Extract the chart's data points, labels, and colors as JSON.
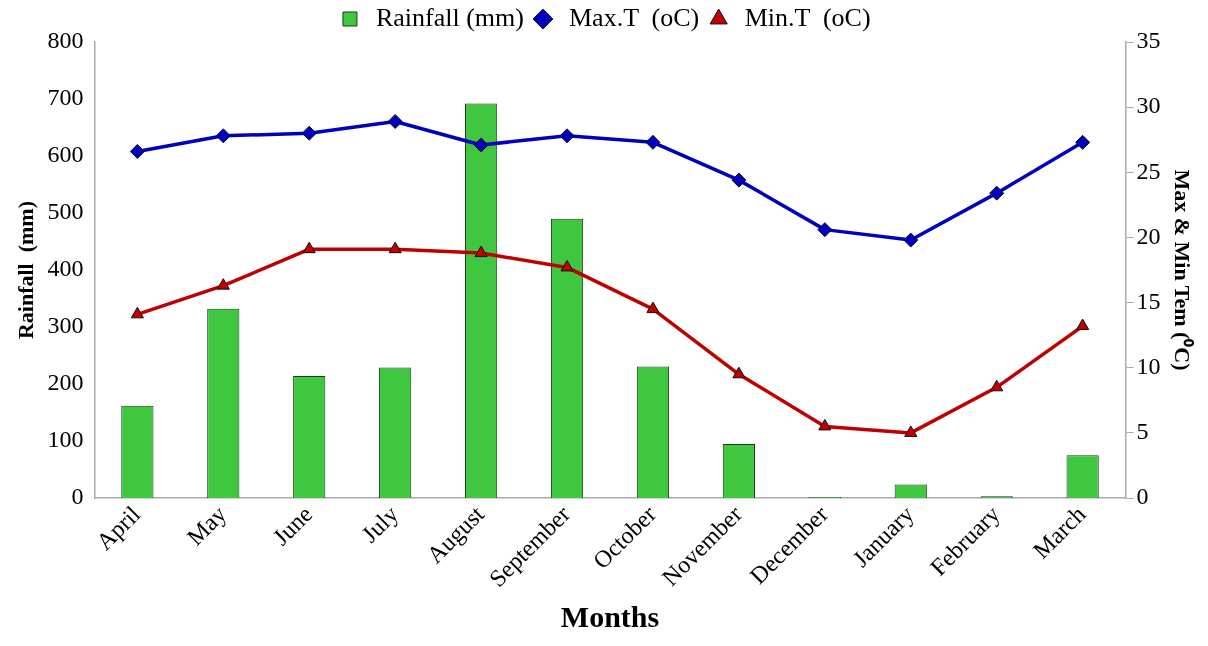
{
  "chart_data": {
    "type": "bar",
    "xlabel": "Months",
    "ylabel": "Rainfall  (mm)",
    "y2label": "Max & Min Tem (⁰C)",
    "categories": [
      "April",
      "May",
      "June",
      "July",
      "August",
      "September",
      "October",
      "November",
      "December",
      "January",
      "February",
      "March"
    ],
    "series": [
      {
        "name": "Rainfall (mm)",
        "color": "#3fc73f",
        "values": [
          162,
          332,
          214,
          229,
          692,
          490,
          231,
          95,
          2,
          24,
          3,
          75
        ]
      },
      {
        "name": "Max.T  (oC)",
        "type": "line",
        "axis": "y2",
        "marker": "diamond",
        "color": "#0000c0",
        "values": [
          26.6,
          27.8,
          28.0,
          28.9,
          27.1,
          27.8,
          27.3,
          24.4,
          20.6,
          19.8,
          23.4,
          27.3
        ]
      },
      {
        "name": "Min.T  (oC)",
        "type": "line",
        "axis": "y2",
        "marker": "triangle",
        "color": "#c00000",
        "values": [
          14.1,
          16.3,
          19.1,
          19.1,
          18.8,
          17.7,
          14.5,
          9.5,
          5.5,
          5.0,
          8.5,
          13.2
        ]
      }
    ],
    "ylim": [
      0,
      800
    ],
    "yticks": [
      0,
      100,
      200,
      300,
      400,
      500,
      600,
      700,
      800
    ],
    "y2lim": [
      0,
      35
    ],
    "y2ticks": [
      0,
      5,
      10,
      15,
      20,
      25,
      30,
      35
    ],
    "grid": false,
    "legend": "top"
  }
}
